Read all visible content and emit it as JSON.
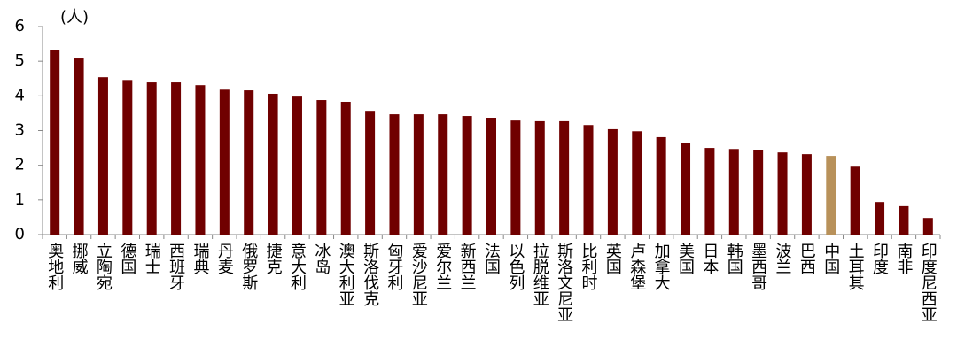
{
  "chart_data": {
    "type": "bar",
    "y_label": "(人)",
    "categories": [
      "奥地利",
      "挪威",
      "立陶宛",
      "德国",
      "瑞士",
      "西班牙",
      "瑞典",
      "丹麦",
      "俄罗斯",
      "捷克",
      "意大利",
      "冰岛",
      "澳大利亚",
      "斯洛伐克",
      "匈牙利",
      "爱沙尼亚",
      "爱尔兰",
      "新西兰",
      "法国",
      "以色列",
      "拉脱维亚",
      "斯洛文尼亚",
      "比利时",
      "英国",
      "卢森堡",
      "加拿大",
      "美国",
      "日本",
      "韩国",
      "墨西哥",
      "波兰",
      "巴西",
      "中国",
      "土耳其",
      "印度",
      "南非",
      "印度尼西亚"
    ],
    "values": [
      5.33,
      5.08,
      4.54,
      4.46,
      4.39,
      4.39,
      4.31,
      4.18,
      4.16,
      4.06,
      3.98,
      3.88,
      3.83,
      3.57,
      3.47,
      3.47,
      3.47,
      3.42,
      3.37,
      3.29,
      3.27,
      3.27,
      3.16,
      3.04,
      2.98,
      2.81,
      2.65,
      2.5,
      2.47,
      2.45,
      2.37,
      2.32,
      2.27,
      1.96,
      0.94,
      0.82,
      0.48
    ],
    "colors": [
      "#700000",
      "#700000",
      "#700000",
      "#700000",
      "#700000",
      "#700000",
      "#700000",
      "#700000",
      "#700000",
      "#700000",
      "#700000",
      "#700000",
      "#700000",
      "#700000",
      "#700000",
      "#700000",
      "#700000",
      "#700000",
      "#700000",
      "#700000",
      "#700000",
      "#700000",
      "#700000",
      "#700000",
      "#700000",
      "#700000",
      "#700000",
      "#700000",
      "#700000",
      "#700000",
      "#700000",
      "#700000",
      "#b8915a",
      "#700000",
      "#700000",
      "#700000",
      "#700000"
    ],
    "ylim": [
      0,
      6
    ],
    "yticks": [
      0,
      1,
      2,
      3,
      4,
      5,
      6
    ],
    "grid": false
  }
}
